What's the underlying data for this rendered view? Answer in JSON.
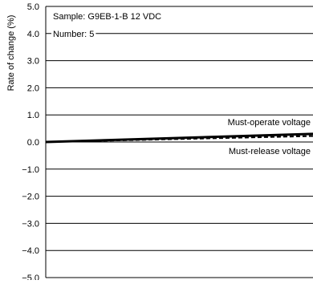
{
  "chart_data": {
    "type": "line",
    "title": "",
    "ylabel": "Rate of change (%)",
    "xlabel": "",
    "ylim": [
      -5.0,
      5.0
    ],
    "yticks": [
      5.0,
      4.0,
      3.0,
      2.0,
      1.0,
      0.0,
      -1.0,
      -2.0,
      -3.0,
      -4.0,
      -5.0
    ],
    "ytick_labels": [
      "5.0",
      "4.0",
      "3.0",
      "2.0",
      "1.0",
      "0.0",
      "−1.0",
      "−2.0",
      "−3.0",
      "−4.0",
      "−5.0"
    ],
    "grid": "horizontal",
    "x_relative": [
      0,
      1
    ],
    "annotations": {
      "sample": "Sample: G9EB-1-B 12 VDC",
      "number": "Number: 5"
    },
    "series": [
      {
        "name": "Must-operate voltage",
        "style": "solid",
        "color": "#000000",
        "values": [
          0.0,
          0.3
        ]
      },
      {
        "name": "Must-release voltage",
        "style": "dashed",
        "color": "#000000",
        "values": [
          0.0,
          0.22
        ]
      }
    ]
  }
}
